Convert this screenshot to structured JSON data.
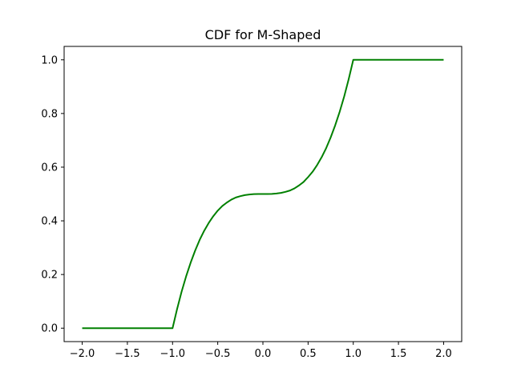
{
  "chart_data": {
    "type": "line",
    "title": "CDF for M-Shaped",
    "xlabel": "",
    "ylabel": "",
    "xlim": [
      -2.2,
      2.2
    ],
    "ylim": [
      -0.05,
      1.05
    ],
    "xticks": [
      -2.0,
      -1.5,
      -1.0,
      -0.5,
      0.0,
      0.5,
      1.0,
      1.5,
      2.0
    ],
    "xtick_labels": [
      "−2.0",
      "−1.5",
      "−1.0",
      "−0.5",
      "0.0",
      "0.5",
      "1.0",
      "1.5",
      "2.0"
    ],
    "yticks": [
      0.0,
      0.2,
      0.4,
      0.6,
      0.8,
      1.0
    ],
    "ytick_labels": [
      "0.0",
      "0.2",
      "0.4",
      "0.6",
      "0.8",
      "1.0"
    ],
    "grid": false,
    "legend": "none",
    "series": [
      {
        "color": "#008000",
        "x": [
          -2.0,
          -1.5,
          -1.0,
          -0.95,
          -0.9,
          -0.85,
          -0.8,
          -0.75,
          -0.7,
          -0.65,
          -0.6,
          -0.55,
          -0.5,
          -0.45,
          -0.4,
          -0.35,
          -0.3,
          -0.25,
          -0.2,
          -0.15,
          -0.1,
          -0.05,
          0.0,
          0.05,
          0.1,
          0.15,
          0.2,
          0.25,
          0.3,
          0.35,
          0.4,
          0.45,
          0.5,
          0.55,
          0.6,
          0.65,
          0.7,
          0.75,
          0.8,
          0.85,
          0.9,
          0.95,
          1.0,
          1.5,
          2.0
        ],
        "y": [
          0.0,
          0.0,
          0.0,
          0.071,
          0.136,
          0.193,
          0.244,
          0.289,
          0.329,
          0.363,
          0.392,
          0.417,
          0.438,
          0.455,
          0.468,
          0.479,
          0.487,
          0.492,
          0.496,
          0.498,
          0.4995,
          0.5,
          0.5,
          0.5,
          0.5005,
          0.502,
          0.504,
          0.508,
          0.513,
          0.521,
          0.532,
          0.545,
          0.563,
          0.583,
          0.608,
          0.637,
          0.671,
          0.711,
          0.756,
          0.807,
          0.864,
          0.929,
          1.0,
          1.0,
          1.0
        ]
      }
    ]
  }
}
